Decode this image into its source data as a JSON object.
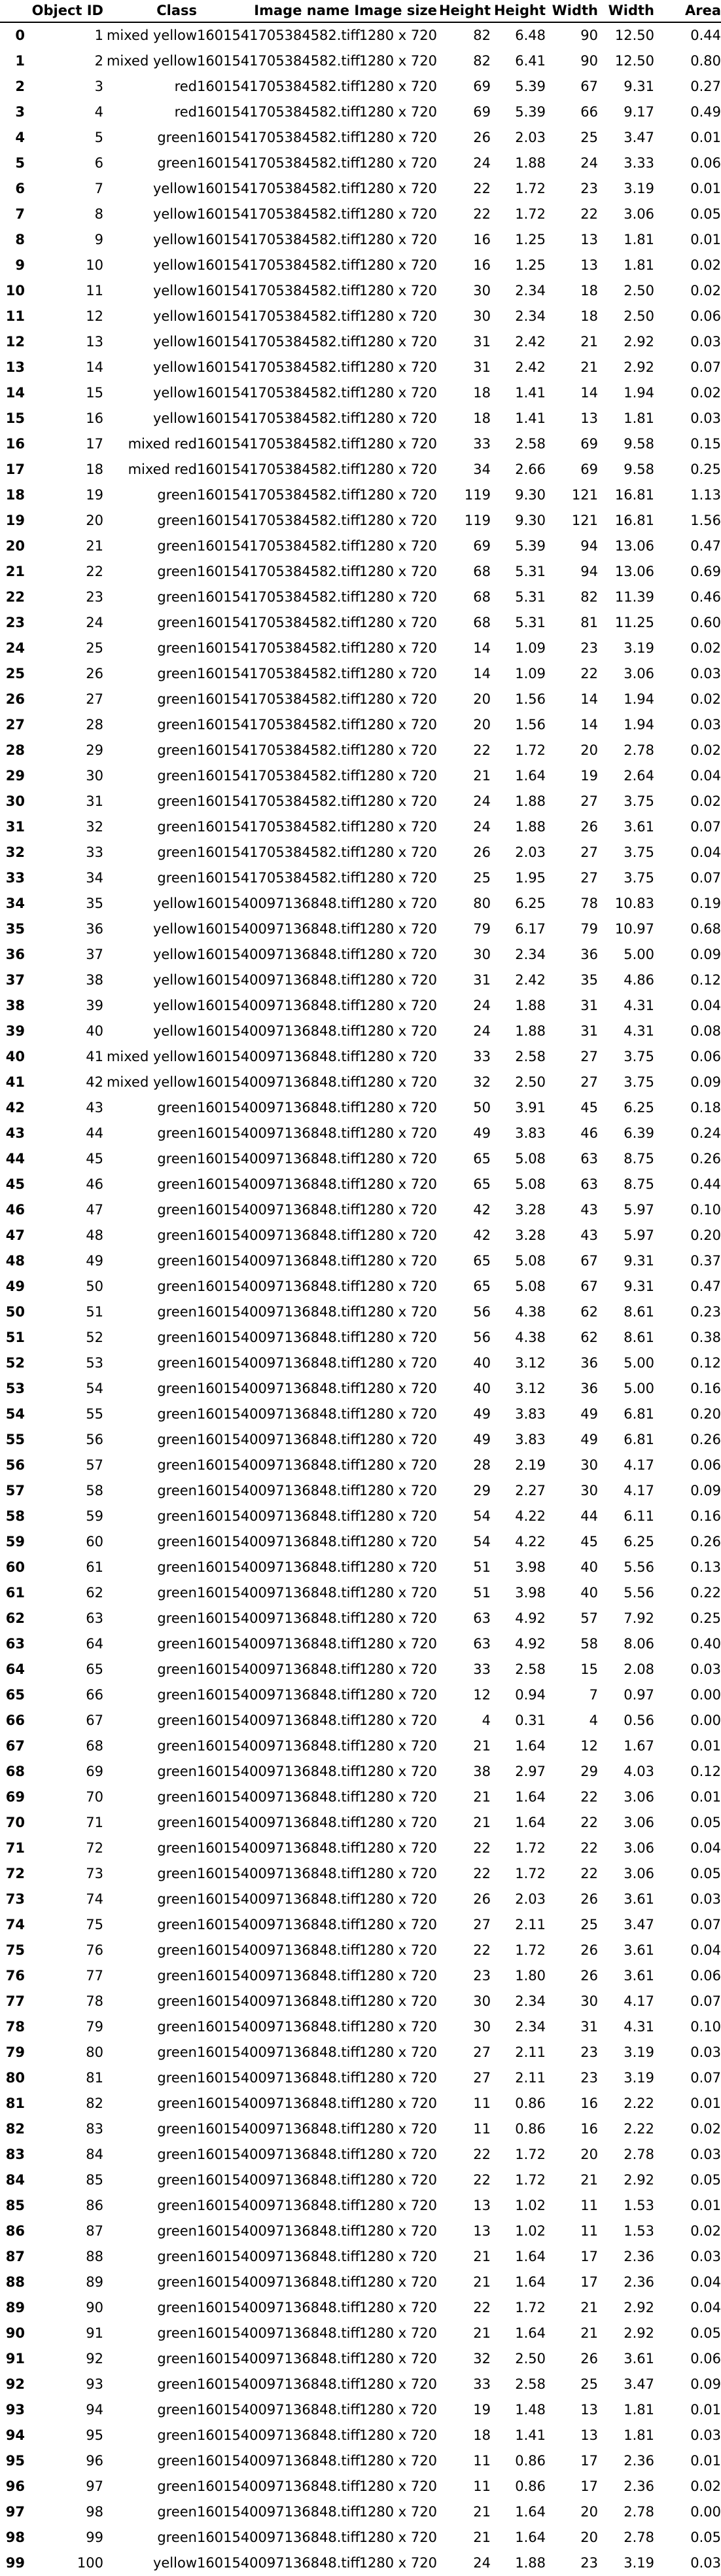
{
  "table": {
    "columns": [
      "",
      "Object ID",
      "Class",
      "Image name",
      "Image size",
      "Height",
      "Height",
      "Width",
      "Width",
      "Area"
    ],
    "rows": [
      [
        "0",
        "1",
        "mixed yellow",
        "1601541705384582.tiff",
        "1280 x 720",
        "82",
        "6.48",
        "90",
        "12.50",
        "0.44"
      ],
      [
        "1",
        "2",
        "mixed yellow",
        "1601541705384582.tiff",
        "1280 x 720",
        "82",
        "6.41",
        "90",
        "12.50",
        "0.80"
      ],
      [
        "2",
        "3",
        "red",
        "1601541705384582.tiff",
        "1280 x 720",
        "69",
        "5.39",
        "67",
        "9.31",
        "0.27"
      ],
      [
        "3",
        "4",
        "red",
        "1601541705384582.tiff",
        "1280 x 720",
        "69",
        "5.39",
        "66",
        "9.17",
        "0.49"
      ],
      [
        "4",
        "5",
        "green",
        "1601541705384582.tiff",
        "1280 x 720",
        "26",
        "2.03",
        "25",
        "3.47",
        "0.01"
      ],
      [
        "5",
        "6",
        "green",
        "1601541705384582.tiff",
        "1280 x 720",
        "24",
        "1.88",
        "24",
        "3.33",
        "0.06"
      ],
      [
        "6",
        "7",
        "yellow",
        "1601541705384582.tiff",
        "1280 x 720",
        "22",
        "1.72",
        "23",
        "3.19",
        "0.01"
      ],
      [
        "7",
        "8",
        "yellow",
        "1601541705384582.tiff",
        "1280 x 720",
        "22",
        "1.72",
        "22",
        "3.06",
        "0.05"
      ],
      [
        "8",
        "9",
        "yellow",
        "1601541705384582.tiff",
        "1280 x 720",
        "16",
        "1.25",
        "13",
        "1.81",
        "0.01"
      ],
      [
        "9",
        "10",
        "yellow",
        "1601541705384582.tiff",
        "1280 x 720",
        "16",
        "1.25",
        "13",
        "1.81",
        "0.02"
      ],
      [
        "10",
        "11",
        "yellow",
        "1601541705384582.tiff",
        "1280 x 720",
        "30",
        "2.34",
        "18",
        "2.50",
        "0.02"
      ],
      [
        "11",
        "12",
        "yellow",
        "1601541705384582.tiff",
        "1280 x 720",
        "30",
        "2.34",
        "18",
        "2.50",
        "0.06"
      ],
      [
        "12",
        "13",
        "yellow",
        "1601541705384582.tiff",
        "1280 x 720",
        "31",
        "2.42",
        "21",
        "2.92",
        "0.03"
      ],
      [
        "13",
        "14",
        "yellow",
        "1601541705384582.tiff",
        "1280 x 720",
        "31",
        "2.42",
        "21",
        "2.92",
        "0.07"
      ],
      [
        "14",
        "15",
        "yellow",
        "1601541705384582.tiff",
        "1280 x 720",
        "18",
        "1.41",
        "14",
        "1.94",
        "0.02"
      ],
      [
        "15",
        "16",
        "yellow",
        "1601541705384582.tiff",
        "1280 x 720",
        "18",
        "1.41",
        "13",
        "1.81",
        "0.03"
      ],
      [
        "16",
        "17",
        "mixed red",
        "1601541705384582.tiff",
        "1280 x 720",
        "33",
        "2.58",
        "69",
        "9.58",
        "0.15"
      ],
      [
        "17",
        "18",
        "mixed red",
        "1601541705384582.tiff",
        "1280 x 720",
        "34",
        "2.66",
        "69",
        "9.58",
        "0.25"
      ],
      [
        "18",
        "19",
        "green",
        "1601541705384582.tiff",
        "1280 x 720",
        "119",
        "9.30",
        "121",
        "16.81",
        "1.13"
      ],
      [
        "19",
        "20",
        "green",
        "1601541705384582.tiff",
        "1280 x 720",
        "119",
        "9.30",
        "121",
        "16.81",
        "1.56"
      ],
      [
        "20",
        "21",
        "green",
        "1601541705384582.tiff",
        "1280 x 720",
        "69",
        "5.39",
        "94",
        "13.06",
        "0.47"
      ],
      [
        "21",
        "22",
        "green",
        "1601541705384582.tiff",
        "1280 x 720",
        "68",
        "5.31",
        "94",
        "13.06",
        "0.69"
      ],
      [
        "22",
        "23",
        "green",
        "1601541705384582.tiff",
        "1280 x 720",
        "68",
        "5.31",
        "82",
        "11.39",
        "0.46"
      ],
      [
        "23",
        "24",
        "green",
        "1601541705384582.tiff",
        "1280 x 720",
        "68",
        "5.31",
        "81",
        "11.25",
        "0.60"
      ],
      [
        "24",
        "25",
        "green",
        "1601541705384582.tiff",
        "1280 x 720",
        "14",
        "1.09",
        "23",
        "3.19",
        "0.02"
      ],
      [
        "25",
        "26",
        "green",
        "1601541705384582.tiff",
        "1280 x 720",
        "14",
        "1.09",
        "22",
        "3.06",
        "0.03"
      ],
      [
        "26",
        "27",
        "green",
        "1601541705384582.tiff",
        "1280 x 720",
        "20",
        "1.56",
        "14",
        "1.94",
        "0.02"
      ],
      [
        "27",
        "28",
        "green",
        "1601541705384582.tiff",
        "1280 x 720",
        "20",
        "1.56",
        "14",
        "1.94",
        "0.03"
      ],
      [
        "28",
        "29",
        "green",
        "1601541705384582.tiff",
        "1280 x 720",
        "22",
        "1.72",
        "20",
        "2.78",
        "0.02"
      ],
      [
        "29",
        "30",
        "green",
        "1601541705384582.tiff",
        "1280 x 720",
        "21",
        "1.64",
        "19",
        "2.64",
        "0.04"
      ],
      [
        "30",
        "31",
        "green",
        "1601541705384582.tiff",
        "1280 x 720",
        "24",
        "1.88",
        "27",
        "3.75",
        "0.02"
      ],
      [
        "31",
        "32",
        "green",
        "1601541705384582.tiff",
        "1280 x 720",
        "24",
        "1.88",
        "26",
        "3.61",
        "0.07"
      ],
      [
        "32",
        "33",
        "green",
        "1601541705384582.tiff",
        "1280 x 720",
        "26",
        "2.03",
        "27",
        "3.75",
        "0.04"
      ],
      [
        "33",
        "34",
        "green",
        "1601541705384582.tiff",
        "1280 x 720",
        "25",
        "1.95",
        "27",
        "3.75",
        "0.07"
      ],
      [
        "34",
        "35",
        "yellow",
        "1601540097136848.tiff",
        "1280 x 720",
        "80",
        "6.25",
        "78",
        "10.83",
        "0.19"
      ],
      [
        "35",
        "36",
        "yellow",
        "1601540097136848.tiff",
        "1280 x 720",
        "79",
        "6.17",
        "79",
        "10.97",
        "0.68"
      ],
      [
        "36",
        "37",
        "yellow",
        "1601540097136848.tiff",
        "1280 x 720",
        "30",
        "2.34",
        "36",
        "5.00",
        "0.09"
      ],
      [
        "37",
        "38",
        "yellow",
        "1601540097136848.tiff",
        "1280 x 720",
        "31",
        "2.42",
        "35",
        "4.86",
        "0.12"
      ],
      [
        "38",
        "39",
        "yellow",
        "1601540097136848.tiff",
        "1280 x 720",
        "24",
        "1.88",
        "31",
        "4.31",
        "0.04"
      ],
      [
        "39",
        "40",
        "yellow",
        "1601540097136848.tiff",
        "1280 x 720",
        "24",
        "1.88",
        "31",
        "4.31",
        "0.08"
      ],
      [
        "40",
        "41",
        "mixed yellow",
        "1601540097136848.tiff",
        "1280 x 720",
        "33",
        "2.58",
        "27",
        "3.75",
        "0.06"
      ],
      [
        "41",
        "42",
        "mixed yellow",
        "1601540097136848.tiff",
        "1280 x 720",
        "32",
        "2.50",
        "27",
        "3.75",
        "0.09"
      ],
      [
        "42",
        "43",
        "green",
        "1601540097136848.tiff",
        "1280 x 720",
        "50",
        "3.91",
        "45",
        "6.25",
        "0.18"
      ],
      [
        "43",
        "44",
        "green",
        "1601540097136848.tiff",
        "1280 x 720",
        "49",
        "3.83",
        "46",
        "6.39",
        "0.24"
      ],
      [
        "44",
        "45",
        "green",
        "1601540097136848.tiff",
        "1280 x 720",
        "65",
        "5.08",
        "63",
        "8.75",
        "0.26"
      ],
      [
        "45",
        "46",
        "green",
        "1601540097136848.tiff",
        "1280 x 720",
        "65",
        "5.08",
        "63",
        "8.75",
        "0.44"
      ],
      [
        "46",
        "47",
        "green",
        "1601540097136848.tiff",
        "1280 x 720",
        "42",
        "3.28",
        "43",
        "5.97",
        "0.10"
      ],
      [
        "47",
        "48",
        "green",
        "1601540097136848.tiff",
        "1280 x 720",
        "42",
        "3.28",
        "43",
        "5.97",
        "0.20"
      ],
      [
        "48",
        "49",
        "green",
        "1601540097136848.tiff",
        "1280 x 720",
        "65",
        "5.08",
        "67",
        "9.31",
        "0.37"
      ],
      [
        "49",
        "50",
        "green",
        "1601540097136848.tiff",
        "1280 x 720",
        "65",
        "5.08",
        "67",
        "9.31",
        "0.47"
      ],
      [
        "50",
        "51",
        "green",
        "1601540097136848.tiff",
        "1280 x 720",
        "56",
        "4.38",
        "62",
        "8.61",
        "0.23"
      ],
      [
        "51",
        "52",
        "green",
        "1601540097136848.tiff",
        "1280 x 720",
        "56",
        "4.38",
        "62",
        "8.61",
        "0.38"
      ],
      [
        "52",
        "53",
        "green",
        "1601540097136848.tiff",
        "1280 x 720",
        "40",
        "3.12",
        "36",
        "5.00",
        "0.12"
      ],
      [
        "53",
        "54",
        "green",
        "1601540097136848.tiff",
        "1280 x 720",
        "40",
        "3.12",
        "36",
        "5.00",
        "0.16"
      ],
      [
        "54",
        "55",
        "green",
        "1601540097136848.tiff",
        "1280 x 720",
        "49",
        "3.83",
        "49",
        "6.81",
        "0.20"
      ],
      [
        "55",
        "56",
        "green",
        "1601540097136848.tiff",
        "1280 x 720",
        "49",
        "3.83",
        "49",
        "6.81",
        "0.26"
      ],
      [
        "56",
        "57",
        "green",
        "1601540097136848.tiff",
        "1280 x 720",
        "28",
        "2.19",
        "30",
        "4.17",
        "0.06"
      ],
      [
        "57",
        "58",
        "green",
        "1601540097136848.tiff",
        "1280 x 720",
        "29",
        "2.27",
        "30",
        "4.17",
        "0.09"
      ],
      [
        "58",
        "59",
        "green",
        "1601540097136848.tiff",
        "1280 x 720",
        "54",
        "4.22",
        "44",
        "6.11",
        "0.16"
      ],
      [
        "59",
        "60",
        "green",
        "1601540097136848.tiff",
        "1280 x 720",
        "54",
        "4.22",
        "45",
        "6.25",
        "0.26"
      ],
      [
        "60",
        "61",
        "green",
        "1601540097136848.tiff",
        "1280 x 720",
        "51",
        "3.98",
        "40",
        "5.56",
        "0.13"
      ],
      [
        "61",
        "62",
        "green",
        "1601540097136848.tiff",
        "1280 x 720",
        "51",
        "3.98",
        "40",
        "5.56",
        "0.22"
      ],
      [
        "62",
        "63",
        "green",
        "1601540097136848.tiff",
        "1280 x 720",
        "63",
        "4.92",
        "57",
        "7.92",
        "0.25"
      ],
      [
        "63",
        "64",
        "green",
        "1601540097136848.tiff",
        "1280 x 720",
        "63",
        "4.92",
        "58",
        "8.06",
        "0.40"
      ],
      [
        "64",
        "65",
        "green",
        "1601540097136848.tiff",
        "1280 x 720",
        "33",
        "2.58",
        "15",
        "2.08",
        "0.03"
      ],
      [
        "65",
        "66",
        "green",
        "1601540097136848.tiff",
        "1280 x 720",
        "12",
        "0.94",
        "7",
        "0.97",
        "0.00"
      ],
      [
        "66",
        "67",
        "green",
        "1601540097136848.tiff",
        "1280 x 720",
        "4",
        "0.31",
        "4",
        "0.56",
        "0.00"
      ],
      [
        "67",
        "68",
        "green",
        "1601540097136848.tiff",
        "1280 x 720",
        "21",
        "1.64",
        "12",
        "1.67",
        "0.01"
      ],
      [
        "68",
        "69",
        "green",
        "1601540097136848.tiff",
        "1280 x 720",
        "38",
        "2.97",
        "29",
        "4.03",
        "0.12"
      ],
      [
        "69",
        "70",
        "green",
        "1601540097136848.tiff",
        "1280 x 720",
        "21",
        "1.64",
        "22",
        "3.06",
        "0.01"
      ],
      [
        "70",
        "71",
        "green",
        "1601540097136848.tiff",
        "1280 x 720",
        "21",
        "1.64",
        "22",
        "3.06",
        "0.05"
      ],
      [
        "71",
        "72",
        "green",
        "1601540097136848.tiff",
        "1280 x 720",
        "22",
        "1.72",
        "22",
        "3.06",
        "0.04"
      ],
      [
        "72",
        "73",
        "green",
        "1601540097136848.tiff",
        "1280 x 720",
        "22",
        "1.72",
        "22",
        "3.06",
        "0.05"
      ],
      [
        "73",
        "74",
        "green",
        "1601540097136848.tiff",
        "1280 x 720",
        "26",
        "2.03",
        "26",
        "3.61",
        "0.03"
      ],
      [
        "74",
        "75",
        "green",
        "1601540097136848.tiff",
        "1280 x 720",
        "27",
        "2.11",
        "25",
        "3.47",
        "0.07"
      ],
      [
        "75",
        "76",
        "green",
        "1601540097136848.tiff",
        "1280 x 720",
        "22",
        "1.72",
        "26",
        "3.61",
        "0.04"
      ],
      [
        "76",
        "77",
        "green",
        "1601540097136848.tiff",
        "1280 x 720",
        "23",
        "1.80",
        "26",
        "3.61",
        "0.06"
      ],
      [
        "77",
        "78",
        "green",
        "1601540097136848.tiff",
        "1280 x 720",
        "30",
        "2.34",
        "30",
        "4.17",
        "0.07"
      ],
      [
        "78",
        "79",
        "green",
        "1601540097136848.tiff",
        "1280 x 720",
        "30",
        "2.34",
        "31",
        "4.31",
        "0.10"
      ],
      [
        "79",
        "80",
        "green",
        "1601540097136848.tiff",
        "1280 x 720",
        "27",
        "2.11",
        "23",
        "3.19",
        "0.03"
      ],
      [
        "80",
        "81",
        "green",
        "1601540097136848.tiff",
        "1280 x 720",
        "27",
        "2.11",
        "23",
        "3.19",
        "0.07"
      ],
      [
        "81",
        "82",
        "green",
        "1601540097136848.tiff",
        "1280 x 720",
        "11",
        "0.86",
        "16",
        "2.22",
        "0.01"
      ],
      [
        "82",
        "83",
        "green",
        "1601540097136848.tiff",
        "1280 x 720",
        "11",
        "0.86",
        "16",
        "2.22",
        "0.02"
      ],
      [
        "83",
        "84",
        "green",
        "1601540097136848.tiff",
        "1280 x 720",
        "22",
        "1.72",
        "20",
        "2.78",
        "0.03"
      ],
      [
        "84",
        "85",
        "green",
        "1601540097136848.tiff",
        "1280 x 720",
        "22",
        "1.72",
        "21",
        "2.92",
        "0.05"
      ],
      [
        "85",
        "86",
        "green",
        "1601540097136848.tiff",
        "1280 x 720",
        "13",
        "1.02",
        "11",
        "1.53",
        "0.01"
      ],
      [
        "86",
        "87",
        "green",
        "1601540097136848.tiff",
        "1280 x 720",
        "13",
        "1.02",
        "11",
        "1.53",
        "0.02"
      ],
      [
        "87",
        "88",
        "green",
        "1601540097136848.tiff",
        "1280 x 720",
        "21",
        "1.64",
        "17",
        "2.36",
        "0.03"
      ],
      [
        "88",
        "89",
        "green",
        "1601540097136848.tiff",
        "1280 x 720",
        "21",
        "1.64",
        "17",
        "2.36",
        "0.04"
      ],
      [
        "89",
        "90",
        "green",
        "1601540097136848.tiff",
        "1280 x 720",
        "22",
        "1.72",
        "21",
        "2.92",
        "0.04"
      ],
      [
        "90",
        "91",
        "green",
        "1601540097136848.tiff",
        "1280 x 720",
        "21",
        "1.64",
        "21",
        "2.92",
        "0.05"
      ],
      [
        "91",
        "92",
        "green",
        "1601540097136848.tiff",
        "1280 x 720",
        "32",
        "2.50",
        "26",
        "3.61",
        "0.06"
      ],
      [
        "92",
        "93",
        "green",
        "1601540097136848.tiff",
        "1280 x 720",
        "33",
        "2.58",
        "25",
        "3.47",
        "0.09"
      ],
      [
        "93",
        "94",
        "green",
        "1601540097136848.tiff",
        "1280 x 720",
        "19",
        "1.48",
        "13",
        "1.81",
        "0.01"
      ],
      [
        "94",
        "95",
        "green",
        "1601540097136848.tiff",
        "1280 x 720",
        "18",
        "1.41",
        "13",
        "1.81",
        "0.03"
      ],
      [
        "95",
        "96",
        "green",
        "1601540097136848.tiff",
        "1280 x 720",
        "11",
        "0.86",
        "17",
        "2.36",
        "0.01"
      ],
      [
        "96",
        "97",
        "green",
        "1601540097136848.tiff",
        "1280 x 720",
        "11",
        "0.86",
        "17",
        "2.36",
        "0.02"
      ],
      [
        "97",
        "98",
        "green",
        "1601540097136848.tiff",
        "1280 x 720",
        "21",
        "1.64",
        "20",
        "2.78",
        "0.00"
      ],
      [
        "98",
        "99",
        "green",
        "1601540097136848.tiff",
        "1280 x 720",
        "21",
        "1.64",
        "20",
        "2.78",
        "0.05"
      ],
      [
        "99",
        "100",
        "yellow",
        "1601540097136848.tiff",
        "1280 x 720",
        "24",
        "1.88",
        "23",
        "3.19",
        "0.03"
      ]
    ]
  }
}
